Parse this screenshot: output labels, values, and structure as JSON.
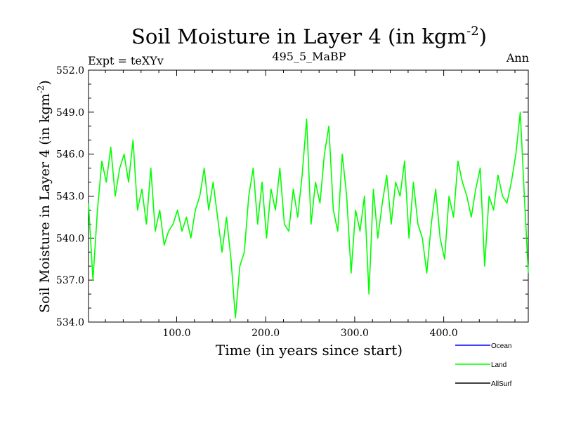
{
  "colors": {
    "ocean": "#0000ff",
    "land": "#00ff00",
    "allsurf": "#000000",
    "axis": "#000000"
  },
  "header": {
    "title_main": "Soil Moisture in Layer 4 (in kgm",
    "title_sup": "-2",
    "title_close": ")",
    "left": "Expt = teXYv",
    "center": "495_5_MaBP",
    "right": "Ann"
  },
  "legend": {
    "ocean": "Ocean",
    "land": "Land",
    "allsurf": "AllSurf"
  },
  "chart_data": {
    "type": "line",
    "title": "Soil Moisture in Layer 4 (in kgm-2)",
    "xlabel": "Time (in years since start)",
    "ylabel": "Soil Moisture in Layer 4 (in kgm-2)",
    "xlim": [
      1,
      495
    ],
    "ylim": [
      534.0,
      552.0
    ],
    "x_ticks": [
      100,
      200,
      300,
      400
    ],
    "x_tick_labels": [
      "100.0",
      "200.0",
      "300.0",
      "400.0"
    ],
    "y_ticks": [
      534,
      537,
      540,
      543,
      546,
      549,
      552
    ],
    "y_tick_labels": [
      "534.0",
      "537.0",
      "540.0",
      "543.0",
      "546.0",
      "549.0",
      "552.0"
    ],
    "legend_position": "bottom-right",
    "series": [
      {
        "name": "Land",
        "x": [
          1,
          6,
          11,
          16,
          21,
          26,
          31,
          36,
          41,
          46,
          51,
          56,
          61,
          66,
          71,
          76,
          81,
          86,
          91,
          96,
          101,
          106,
          111,
          116,
          121,
          126,
          131,
          136,
          141,
          146,
          151,
          156,
          161,
          166,
          171,
          176,
          181,
          186,
          191,
          196,
          201,
          206,
          211,
          216,
          221,
          226,
          231,
          236,
          241,
          246,
          251,
          256,
          261,
          266,
          271,
          276,
          281,
          286,
          291,
          296,
          301,
          306,
          311,
          316,
          321,
          326,
          331,
          336,
          341,
          346,
          351,
          356,
          361,
          366,
          371,
          376,
          381,
          386,
          391,
          396,
          401,
          406,
          411,
          416,
          421,
          426,
          431,
          436,
          441,
          446,
          451,
          456,
          461,
          466,
          471,
          476,
          481,
          486,
          491,
          495
        ],
        "values": [
          542.5,
          537.0,
          542.0,
          545.5,
          544.0,
          546.5,
          543.0,
          545.0,
          546.0,
          544.0,
          547.0,
          542.0,
          543.5,
          541.0,
          545.0,
          540.5,
          542.0,
          539.5,
          540.5,
          541.0,
          542.0,
          540.5,
          541.5,
          540.0,
          542.0,
          543.0,
          545.0,
          542.0,
          544.0,
          541.5,
          539.0,
          541.5,
          538.5,
          534.3,
          538.0,
          539.0,
          543.0,
          545.0,
          541.0,
          544.0,
          540.0,
          543.5,
          542.0,
          545.0,
          541.0,
          540.5,
          543.5,
          541.5,
          544.5,
          548.5,
          541.0,
          544.0,
          542.5,
          546.0,
          548.0,
          542.0,
          540.5,
          546.0,
          543.0,
          537.5,
          542.0,
          540.5,
          543.0,
          536.0,
          543.5,
          540.0,
          542.5,
          544.5,
          541.0,
          544.0,
          543.0,
          545.5,
          540.0,
          544.0,
          541.0,
          540.0,
          537.5,
          541.0,
          543.5,
          540.0,
          538.5,
          543.0,
          541.5,
          545.5,
          544.0,
          543.0,
          541.5,
          543.5,
          545.0,
          538.0,
          543.0,
          542.0,
          544.5,
          543.0,
          542.5,
          544.0,
          546.0,
          549.0,
          542.5,
          537.5
        ]
      }
    ]
  }
}
